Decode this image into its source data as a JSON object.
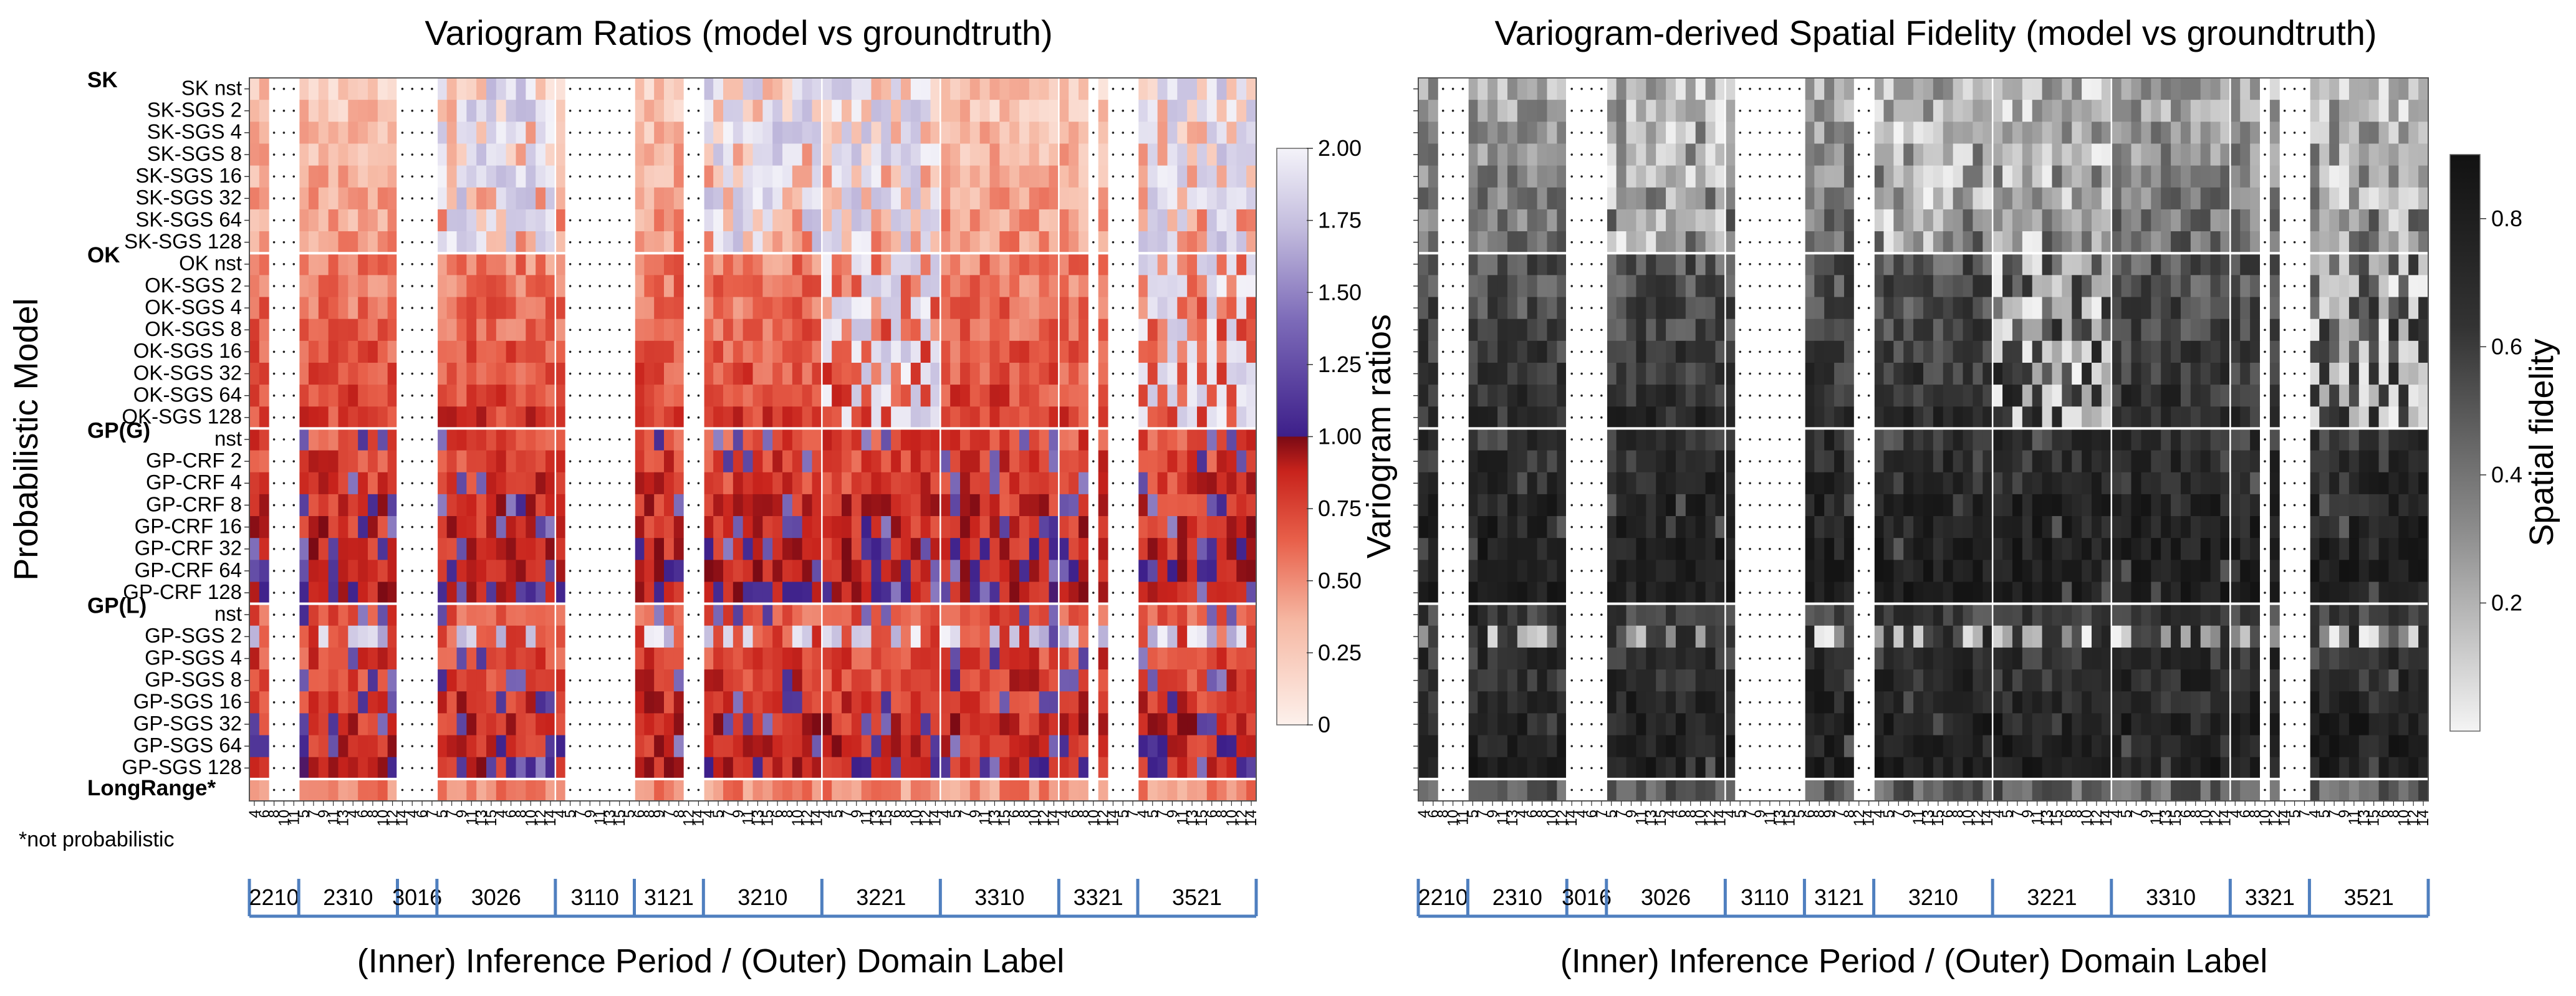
{
  "chart_data": [
    {
      "type": "heatmap",
      "title": "Variogram Ratios (model vs groundtruth)",
      "xlabel": "(Inner) Inference Period / (Outer) Domain Label",
      "ylabel": "Probabilistic Model",
      "colorbar": {
        "label": "Variogram ratios",
        "ticks": [
          "0",
          "0.25",
          "0.50",
          "0.75",
          "1.00",
          "1.25",
          "1.50",
          "1.75",
          "2.00"
        ],
        "range": [
          0,
          2
        ]
      },
      "groups": [
        {
          "label": "SK",
          "rows": [
            "SK nst",
            "SK-SGS 2",
            "SK-SGS 4",
            "SK-SGS 8",
            "SK-SGS 16",
            "SK-SGS 32",
            "SK-SGS 64",
            "SK-SGS 128"
          ]
        },
        {
          "label": "OK",
          "rows": [
            "OK nst",
            "OK-SGS 2",
            "OK-SGS 4",
            "OK-SGS 8",
            "OK-SGS 16",
            "OK-SGS 32",
            "OK-SGS 64",
            "OK-SGS 128"
          ]
        },
        {
          "label": "GP(G)",
          "rows": [
            "nst",
            "GP-CRF 2",
            "GP-CRF 4",
            "GP-CRF 8",
            "GP-CRF 16",
            "GP-CRF 32",
            "GP-CRF 64",
            "GP-CRF 128"
          ]
        },
        {
          "label": "GP(L)",
          "rows": [
            "nst",
            "GP-SGS 2",
            "GP-SGS 4",
            "GP-SGS 8",
            "GP-SGS 16",
            "GP-SGS 32",
            "GP-SGS 64",
            "GP-SGS 128"
          ]
        },
        {
          "label": "LongRange*",
          "rows": []
        }
      ],
      "footnote": "*not probabilistic"
    },
    {
      "type": "heatmap",
      "title": "Variogram-derived Spatial Fidelity (model vs groundtruth)",
      "xlabel": "(Inner) Inference Period / (Outer) Domain Label",
      "ylabel": "",
      "colorbar": {
        "label": "Spatial fidelity",
        "ticks": [
          "0.2",
          "0.4",
          "0.6",
          "0.8"
        ],
        "range": [
          0,
          0.9
        ]
      }
    }
  ],
  "domains": [
    {
      "label": "2210",
      "periods": [
        "4",
        "6",
        "8",
        "10",
        "11"
      ],
      "sparse": [
        false,
        false,
        true,
        true,
        true
      ]
    },
    {
      "label": "2310",
      "periods": [
        "5",
        "7",
        "9",
        "11",
        "13",
        "4",
        "6",
        "8",
        "10",
        "12"
      ],
      "sparse": [
        false,
        false,
        false,
        false,
        false,
        false,
        false,
        false,
        false,
        false
      ]
    },
    {
      "label": "3016",
      "periods": [
        "14",
        "4",
        "6",
        "7"
      ],
      "sparse": [
        true,
        true,
        true,
        true
      ]
    },
    {
      "label": "3026",
      "periods": [
        "5",
        "7",
        "9",
        "11",
        "13",
        "15",
        "4",
        "6",
        "8",
        "10",
        "12",
        "14"
      ],
      "sparse": [
        false,
        false,
        false,
        false,
        false,
        false,
        false,
        false,
        false,
        false,
        false,
        false
      ]
    },
    {
      "label": "3110",
      "periods": [
        "4",
        "5",
        "7",
        "9",
        "11",
        "13",
        "15",
        "5"
      ],
      "sparse": [
        false,
        true,
        true,
        true,
        true,
        true,
        true,
        true
      ]
    },
    {
      "label": "3121",
      "periods": [
        "6",
        "8",
        "9",
        "7",
        "8",
        "12",
        "14"
      ],
      "sparse": [
        false,
        false,
        false,
        false,
        false,
        true,
        true
      ]
    },
    {
      "label": "3210",
      "periods": [
        "4",
        "5",
        "7",
        "9",
        "11",
        "13",
        "15",
        "6",
        "8",
        "10",
        "12",
        "14"
      ],
      "sparse": [
        false,
        false,
        false,
        false,
        false,
        false,
        false,
        false,
        false,
        false,
        false,
        false
      ]
    },
    {
      "label": "3221",
      "periods": [
        "4",
        "5",
        "7",
        "9",
        "11",
        "13",
        "15",
        "6",
        "8",
        "10",
        "12",
        "14"
      ],
      "sparse": [
        false,
        false,
        false,
        false,
        false,
        false,
        false,
        false,
        false,
        false,
        false,
        false
      ]
    },
    {
      "label": "3310",
      "periods": [
        "4",
        "5",
        "7",
        "9",
        "11",
        "13",
        "15",
        "6",
        "8",
        "10",
        "12",
        "14"
      ],
      "sparse": [
        false,
        false,
        false,
        false,
        false,
        false,
        false,
        false,
        false,
        false,
        false,
        false
      ]
    },
    {
      "label": "3321",
      "periods": [
        "4",
        "6",
        "8",
        "10",
        "12",
        "14",
        "5",
        "7"
      ],
      "sparse": [
        false,
        false,
        false,
        true,
        false,
        true,
        true,
        true
      ]
    },
    {
      "label": "3521",
      "periods": [
        "4",
        "5",
        "7",
        "9",
        "11",
        "13",
        "15",
        "6",
        "8",
        "10",
        "12",
        "14"
      ],
      "sparse": [
        false,
        false,
        false,
        false,
        false,
        false,
        false,
        false,
        false,
        false,
        false,
        false
      ]
    }
  ],
  "colors": {
    "ratio_low": "#fbe9e3",
    "ratio_mid_red": "#e24a33",
    "ratio_one": "#7a0a14",
    "ratio_purple": "#4a2a9a",
    "ratio_high": "#f2f1f8",
    "fidelity_low": "#ffffff",
    "fidelity_high": "#111111",
    "domain_bracket": "#4f7fbf"
  }
}
